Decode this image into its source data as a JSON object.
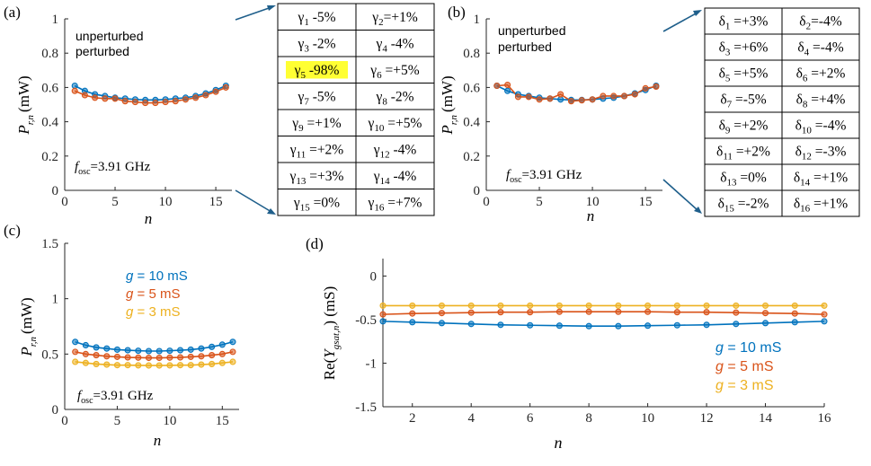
{
  "colors": {
    "blue": "#0072BD",
    "orange": "#D95319",
    "yellow": "#EDB120",
    "highlight": "#FFFF33",
    "arrow": "#1F5F8B"
  },
  "panels": {
    "a": {
      "label": "(a)",
      "chart_data": {
        "type": "line",
        "xlabel": "n",
        "ylabel": "P",
        "ylabel_sub": "r,n",
        "ylabel_unit": "(mW)",
        "xlim": [
          0,
          16.6
        ],
        "ylim": [
          0,
          1
        ],
        "xticks": [
          0,
          5,
          10,
          15
        ],
        "xtick_labels": [
          "0",
          "5",
          "10",
          "15"
        ],
        "yticks": [
          0,
          0.2,
          0.4,
          0.6,
          0.8,
          1
        ],
        "ytick_labels": [
          "0",
          "0.2",
          "0.4",
          "0.6",
          "0.8",
          "1"
        ],
        "x": [
          1,
          2,
          3,
          4,
          5,
          6,
          7,
          8,
          9,
          10,
          11,
          12,
          13,
          14,
          15,
          16
        ],
        "series": [
          {
            "name": "unperturbed",
            "color": "#0072BD",
            "values": [
              0.61,
              0.58,
              0.56,
              0.55,
              0.54,
              0.535,
              0.53,
              0.527,
              0.527,
              0.53,
              0.535,
              0.54,
              0.55,
              0.565,
              0.585,
              0.61
            ]
          },
          {
            "name": "perturbed",
            "color": "#D95319",
            "values": [
              0.58,
              0.555,
              0.54,
              0.535,
              0.535,
              0.52,
              0.515,
              0.51,
              0.51,
              0.515,
              0.52,
              0.53,
              0.54,
              0.555,
              0.575,
              0.6
            ]
          }
        ],
        "legend": [
          "unperturbed",
          "perturbed"
        ],
        "legend_position": "top-left",
        "annotation": {
          "prefix": "f",
          "sub": "osc",
          "suffix": "=3.91 GHz"
        }
      },
      "table": {
        "symbol": "γ",
        "rows": [
          [
            {
              "sub": "1",
              "val": " -5%"
            },
            {
              "sub": "2",
              "val": "=+1%"
            }
          ],
          [
            {
              "sub": "3",
              "val": " -2%"
            },
            {
              "sub": "4",
              "val": " -4%"
            }
          ],
          [
            {
              "sub": "5",
              "val": " -98%",
              "highlight": true
            },
            {
              "sub": "6",
              "val": " =+5%"
            }
          ],
          [
            {
              "sub": "7",
              "val": " -5%"
            },
            {
              "sub": "8",
              "val": " -2%"
            }
          ],
          [
            {
              "sub": "9",
              "val": " =+1%"
            },
            {
              "sub": "10",
              "val": " =+5%"
            }
          ],
          [
            {
              "sub": "11",
              "val": " =+2%"
            },
            {
              "sub": "12",
              "val": " -4%"
            }
          ],
          [
            {
              "sub": "13",
              "val": " =+3%"
            },
            {
              "sub": "14",
              "val": " -4%"
            }
          ],
          [
            {
              "sub": "15",
              "val": " =0%"
            },
            {
              "sub": "16",
              "val": " =+7%"
            }
          ]
        ]
      }
    },
    "b": {
      "label": "(b)",
      "chart_data": {
        "type": "line",
        "xlabel": "n",
        "ylabel": "P",
        "ylabel_sub": "r,n",
        "ylabel_unit": "(mW)",
        "xlim": [
          0,
          16.6
        ],
        "ylim": [
          0,
          1
        ],
        "xticks": [
          0,
          5,
          10,
          15
        ],
        "xtick_labels": [
          "0",
          "5",
          "10",
          "15"
        ],
        "yticks": [
          0,
          0.2,
          0.4,
          0.6,
          0.8,
          1
        ],
        "ytick_labels": [
          "0",
          "0.2",
          "0.4",
          "0.6",
          "0.8",
          "1"
        ],
        "x": [
          1,
          2,
          3,
          4,
          5,
          6,
          7,
          8,
          9,
          10,
          11,
          12,
          13,
          14,
          15,
          16
        ],
        "series": [
          {
            "name": "unperturbed",
            "color": "#0072BD",
            "values": [
              0.61,
              0.58,
              0.56,
              0.55,
              0.54,
              0.535,
              0.53,
              0.527,
              0.527,
              0.53,
              0.535,
              0.54,
              0.55,
              0.565,
              0.585,
              0.61
            ]
          },
          {
            "name": "perturbed",
            "color": "#D95319",
            "values": [
              0.61,
              0.615,
              0.545,
              0.545,
              0.53,
              0.535,
              0.56,
              0.52,
              0.525,
              0.53,
              0.55,
              0.55,
              0.55,
              0.56,
              0.595,
              0.605
            ]
          }
        ],
        "legend": [
          "unperturbed",
          "perturbed"
        ],
        "legend_position": "top-left",
        "annotation": {
          "prefix": "f",
          "sub": "osc",
          "suffix": "=3.91 GHz"
        }
      },
      "table": {
        "symbol": "δ",
        "rows": [
          [
            {
              "sub": "1",
              "val": " =+3%"
            },
            {
              "sub": "2",
              "val": "=-4%"
            }
          ],
          [
            {
              "sub": "3",
              "val": " =+6%"
            },
            {
              "sub": "4",
              "val": " =-4%"
            }
          ],
          [
            {
              "sub": "5",
              "val": " =+5%"
            },
            {
              "sub": "6",
              "val": " =+2%"
            }
          ],
          [
            {
              "sub": "7",
              "val": " =-5%"
            },
            {
              "sub": "8",
              "val": " =+4%"
            }
          ],
          [
            {
              "sub": "9",
              "val": " =+2%"
            },
            {
              "sub": "10",
              "val": " =-4%"
            }
          ],
          [
            {
              "sub": "11",
              "val": " =+2%"
            },
            {
              "sub": "12",
              "val": " =-3%"
            }
          ],
          [
            {
              "sub": "13",
              "val": " =0%"
            },
            {
              "sub": "14",
              "val": " =+1%"
            }
          ],
          [
            {
              "sub": "15",
              "val": " =-2%"
            },
            {
              "sub": "16",
              "val": " =+1%"
            }
          ]
        ]
      }
    },
    "c": {
      "label": "(c)",
      "chart_data": {
        "type": "line",
        "xlabel": "n",
        "ylabel": "P",
        "ylabel_sub": "r,n",
        "ylabel_unit": "(mW)",
        "xlim": [
          0,
          16.6
        ],
        "ylim": [
          0,
          1.5
        ],
        "xticks": [
          0,
          5,
          10,
          15
        ],
        "xtick_labels": [
          "0",
          "5",
          "10",
          "15"
        ],
        "yticks": [
          0,
          0.5,
          1,
          1.5
        ],
        "ytick_labels": [
          "0",
          "0.5",
          "1",
          "1.5"
        ],
        "x": [
          1,
          2,
          3,
          4,
          5,
          6,
          7,
          8,
          9,
          10,
          11,
          12,
          13,
          14,
          15,
          16
        ],
        "series": [
          {
            "name": "g = 10 mS",
            "color": "#0072BD",
            "values": [
              0.61,
              0.58,
              0.56,
              0.55,
              0.54,
              0.535,
              0.53,
              0.527,
              0.527,
              0.53,
              0.535,
              0.54,
              0.55,
              0.565,
              0.585,
              0.61
            ]
          },
          {
            "name": "g = 5 mS",
            "color": "#D95319",
            "values": [
              0.52,
              0.5,
              0.49,
              0.48,
              0.475,
              0.47,
              0.468,
              0.466,
              0.466,
              0.468,
              0.47,
              0.475,
              0.48,
              0.49,
              0.5,
              0.52
            ]
          },
          {
            "name": "g = 3 mS",
            "color": "#EDB120",
            "values": [
              0.43,
              0.42,
              0.41,
              0.405,
              0.4,
              0.4,
              0.398,
              0.397,
              0.397,
              0.398,
              0.4,
              0.4,
              0.405,
              0.41,
              0.42,
              0.43
            ]
          }
        ],
        "legend": [
          {
            "g": "g",
            "text": " = 10 mS"
          },
          {
            "g": "g",
            "text": " = 5 mS"
          },
          {
            "g": "g",
            "text": " = 3 mS"
          }
        ],
        "legend_position": "upper-middle",
        "annotation": {
          "prefix": "f",
          "sub": "osc",
          "suffix": "=3.91 GHz"
        }
      }
    },
    "d": {
      "label": "(d)",
      "chart_data": {
        "type": "line",
        "xlabel": "n",
        "ylabel_prefix": "Re(",
        "ylabel_var": "Y",
        "ylabel_sub": "gsat,n",
        "ylabel_suffix": ") (mS)",
        "xlim": [
          1,
          16
        ],
        "ylim": [
          -1.5,
          0.2
        ],
        "xticks": [
          2,
          4,
          6,
          8,
          10,
          12,
          14,
          16
        ],
        "xtick_labels": [
          "2",
          "4",
          "6",
          "8",
          "10",
          "12",
          "14",
          "16"
        ],
        "yticks": [
          0,
          -0.5,
          -1,
          -1.5
        ],
        "ytick_labels": [
          "0",
          "-0.5",
          "-1",
          "-1.5"
        ],
        "x": [
          1,
          2,
          3,
          4,
          5,
          6,
          7,
          8,
          9,
          10,
          11,
          12,
          13,
          14,
          15,
          16
        ],
        "series": [
          {
            "name": "g = 10 mS",
            "color": "#0072BD",
            "values": [
              -0.52,
              -0.53,
              -0.54,
              -0.55,
              -0.56,
              -0.565,
              -0.57,
              -0.575,
              -0.575,
              -0.57,
              -0.565,
              -0.56,
              -0.55,
              -0.54,
              -0.53,
              -0.52
            ]
          },
          {
            "name": "g = 5 mS",
            "color": "#D95319",
            "values": [
              -0.44,
              -0.43,
              -0.425,
              -0.42,
              -0.415,
              -0.415,
              -0.41,
              -0.41,
              -0.41,
              -0.41,
              -0.415,
              -0.415,
              -0.42,
              -0.425,
              -0.43,
              -0.44
            ]
          },
          {
            "name": "g = 3 mS",
            "color": "#EDB120",
            "values": [
              -0.34,
              -0.34,
              -0.34,
              -0.34,
              -0.34,
              -0.34,
              -0.34,
              -0.34,
              -0.34,
              -0.34,
              -0.34,
              -0.34,
              -0.34,
              -0.34,
              -0.34,
              -0.34
            ]
          }
        ],
        "legend": [
          {
            "g": "g",
            "text": " = 10 mS"
          },
          {
            "g": "g",
            "text": " = 5 mS"
          },
          {
            "g": "g",
            "text": " = 3 mS"
          }
        ],
        "legend_position": "lower-right"
      }
    }
  }
}
